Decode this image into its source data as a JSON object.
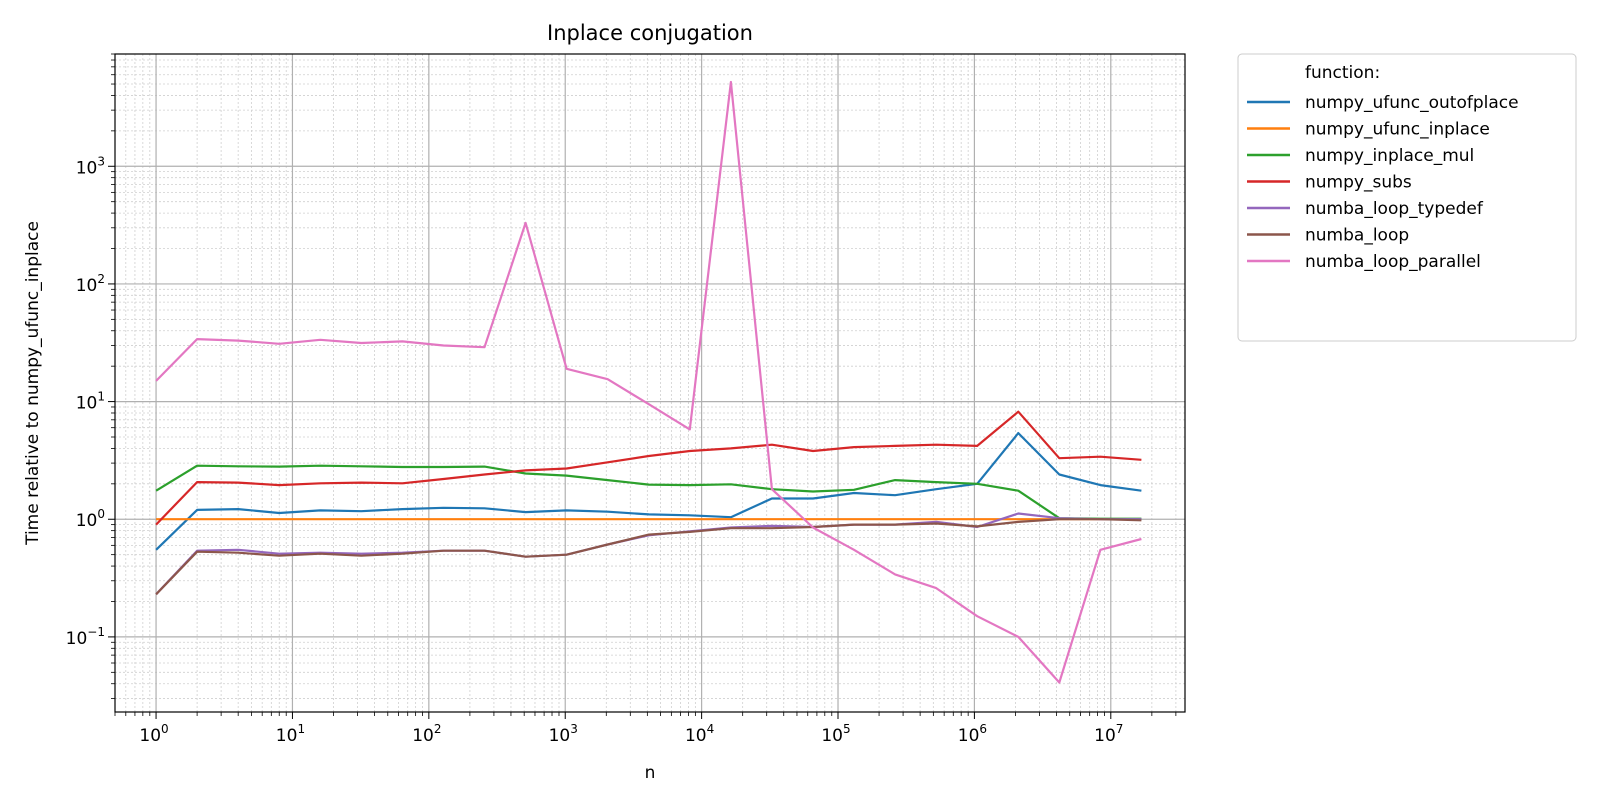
{
  "chart_data": {
    "type": "line",
    "title": "Inplace conjugation",
    "xlabel": "n",
    "ylabel": "Time relative to numpy_ufunc_inplace",
    "x_scale": "log",
    "y_scale": "log",
    "xlim": [
      0.5,
      35000000
    ],
    "ylim": [
      0.023,
      9000
    ],
    "grid": "major and minor",
    "legend_title": "function:",
    "legend_position": "outside-right",
    "x_ticks": [
      {
        "value": 1,
        "base": "10",
        "exp": "0"
      },
      {
        "value": 10,
        "base": "10",
        "exp": "1"
      },
      {
        "value": 100,
        "base": "10",
        "exp": "2"
      },
      {
        "value": 1000,
        "base": "10",
        "exp": "3"
      },
      {
        "value": 10000,
        "base": "10",
        "exp": "4"
      },
      {
        "value": 100000,
        "base": "10",
        "exp": "5"
      },
      {
        "value": 1000000,
        "base": "10",
        "exp": "6"
      },
      {
        "value": 10000000,
        "base": "10",
        "exp": "7"
      }
    ],
    "y_ticks": [
      {
        "value": 0.1,
        "base": "10",
        "exp": "−1"
      },
      {
        "value": 1,
        "base": "10",
        "exp": "0"
      },
      {
        "value": 10,
        "base": "10",
        "exp": "1"
      },
      {
        "value": 100,
        "base": "10",
        "exp": "2"
      },
      {
        "value": 1000,
        "base": "10",
        "exp": "3"
      }
    ],
    "x": [
      1,
      2,
      4,
      8,
      16,
      32,
      64,
      128,
      256,
      512,
      1024,
      2048,
      4096,
      8192,
      16384,
      32768,
      65536,
      131072,
      262144,
      524288,
      1048576,
      2097152,
      4194304,
      8388608,
      16777216
    ],
    "series": [
      {
        "name": "numpy_ufunc_outofplace",
        "color": "#1f77b4",
        "values": [
          0.55,
          1.2,
          1.22,
          1.13,
          1.19,
          1.17,
          1.22,
          1.25,
          1.24,
          1.15,
          1.19,
          1.16,
          1.1,
          1.08,
          1.04,
          1.5,
          1.5,
          1.67,
          1.6,
          1.8,
          2.0,
          5.4,
          2.4,
          1.95,
          1.75
        ]
      },
      {
        "name": "numpy_ufunc_inplace",
        "color": "#ff7f0e",
        "values": [
          1.0,
          1.0,
          1.0,
          1.0,
          1.0,
          1.0,
          1.0,
          1.0,
          1.0,
          1.0,
          1.0,
          1.0,
          1.0,
          1.0,
          1.0,
          1.0,
          1.0,
          1.0,
          1.0,
          1.0,
          1.0,
          1.0,
          1.0,
          1.0,
          1.0
        ]
      },
      {
        "name": "numpy_inplace_mul",
        "color": "#2ca02c",
        "values": [
          1.75,
          2.85,
          2.82,
          2.8,
          2.85,
          2.82,
          2.78,
          2.78,
          2.8,
          2.45,
          2.35,
          2.15,
          1.97,
          1.95,
          1.98,
          1.8,
          1.72,
          1.78,
          2.15,
          2.07,
          2.0,
          1.75,
          1.02,
          1.01,
          1.01
        ]
      },
      {
        "name": "numpy_subs",
        "color": "#d62728",
        "values": [
          0.9,
          2.07,
          2.05,
          1.95,
          2.02,
          2.05,
          2.02,
          2.2,
          2.4,
          2.6,
          2.7,
          3.05,
          3.45,
          3.8,
          4.0,
          4.3,
          3.8,
          4.1,
          4.2,
          4.3,
          4.2,
          8.2,
          3.3,
          3.4,
          3.2
        ]
      },
      {
        "name": "numba_loop_typedef",
        "color": "#9467bd",
        "values": [
          0.23,
          0.54,
          0.55,
          0.51,
          0.52,
          0.51,
          0.52,
          0.54,
          0.54,
          0.48,
          0.5,
          0.61,
          0.73,
          0.79,
          0.85,
          0.88,
          0.86,
          0.9,
          0.9,
          0.95,
          0.86,
          1.12,
          1.02,
          1.0,
          1.0
        ]
      },
      {
        "name": "numba_loop",
        "color": "#8c564b",
        "values": [
          0.23,
          0.53,
          0.52,
          0.49,
          0.51,
          0.49,
          0.51,
          0.54,
          0.54,
          0.48,
          0.5,
          0.61,
          0.74,
          0.78,
          0.84,
          0.84,
          0.86,
          0.9,
          0.9,
          0.92,
          0.87,
          0.95,
          1.0,
          1.0,
          0.98
        ]
      },
      {
        "name": "numba_loop_parallel",
        "color": "#e377c2",
        "values": [
          15,
          34,
          33,
          31,
          33.5,
          31.5,
          32.5,
          30,
          29,
          330,
          19,
          15.5,
          9.5,
          5.8,
          5200,
          1.8,
          0.85,
          0.55,
          0.34,
          0.26,
          0.15,
          0.1,
          0.041,
          0.55,
          0.68
        ]
      }
    ]
  }
}
